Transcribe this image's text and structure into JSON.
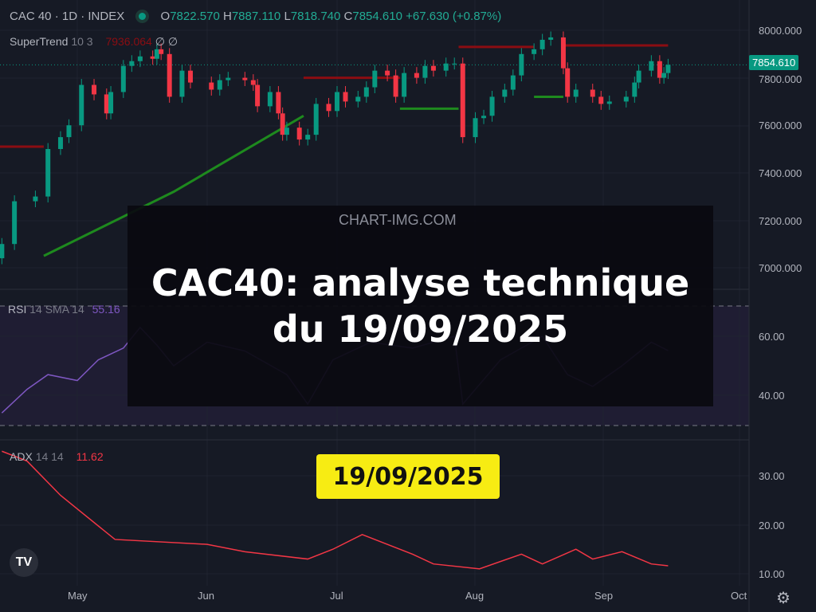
{
  "header": {
    "symbol": "CAC 40 · 1D · INDEX",
    "open_label": "O",
    "open": "7822.570",
    "high_label": "H",
    "high": "7887.110",
    "low_label": "L",
    "low": "7818.740",
    "close_label": "C",
    "close": "7854.610",
    "change": "+67.630 (+0.87%)"
  },
  "supertrend_legend": {
    "name": "SuperTrend",
    "params": "10 3",
    "value": "7936.064",
    "v2": "∅",
    "v3": "∅"
  },
  "rsi_legend": {
    "name": "RSI",
    "params": "14 SMA 14",
    "value": "55.16"
  },
  "adx_legend": {
    "name": "ADX",
    "params": "14 14",
    "value": "11.62"
  },
  "watermark": "CHART-IMG.COM",
  "overlay": {
    "title": "CAC40: analyse technique du 19/09/2025",
    "badge": "19/09/2025"
  },
  "colors": {
    "up": "#089981",
    "down": "#f23645",
    "st_up": "#1e8a1e",
    "st_down": "#8b0d12",
    "rsi": "#7e57c2",
    "adx": "#f23645",
    "badge": "#f7ec13"
  },
  "chart_data": [
    {
      "type": "candlestick",
      "title": "CAC 40 · 1D · INDEX",
      "y_ticks": [
        "8000.000",
        "7800.000",
        "7600.000",
        "7400.000",
        "7200.000",
        "7000.000"
      ],
      "ylim": [
        6900,
        8050
      ],
      "last_price": "7854.610",
      "x_ticks": [
        "May",
        "Jun",
        "Jul",
        "Aug",
        "Sep",
        "Oct"
      ],
      "dates": [
        "04-14",
        "04-17",
        "04-22",
        "04-25",
        "04-28",
        "04-30",
        "05-02",
        "05-05",
        "05-08",
        "05-09",
        "05-12",
        "05-14",
        "05-16",
        "05-19",
        "05-20",
        "05-21",
        "05-23",
        "05-26",
        "05-28",
        "06-02",
        "06-04",
        "06-06",
        "06-10",
        "06-12",
        "06-13",
        "06-16",
        "06-18",
        "06-19",
        "06-20",
        "06-23",
        "06-25",
        "06-27",
        "06-30",
        "07-02",
        "07-04",
        "07-07",
        "07-09",
        "07-11",
        "07-14",
        "07-16",
        "07-18",
        "07-21",
        "07-23",
        "07-25",
        "07-28",
        "07-30",
        "08-01",
        "08-04",
        "08-06",
        "08-08",
        "08-11",
        "08-13",
        "08-15",
        "08-18",
        "08-20",
        "08-22",
        "08-25",
        "08-26",
        "08-28",
        "09-01",
        "09-03",
        "09-05",
        "09-09",
        "09-11",
        "09-12",
        "09-15",
        "09-17",
        "09-18",
        "09-19"
      ],
      "close": [
        7100,
        7280,
        7300,
        7500,
        7550,
        7600,
        7770,
        7730,
        7650,
        7740,
        7850,
        7870,
        7890,
        7880,
        7920,
        7900,
        7720,
        7830,
        7780,
        7750,
        7790,
        7800,
        7790,
        7770,
        7680,
        7740,
        7650,
        7560,
        7590,
        7540,
        7560,
        7690,
        7660,
        7740,
        7700,
        7720,
        7760,
        7830,
        7810,
        7720,
        7820,
        7800,
        7850,
        7830,
        7860,
        7860,
        7550,
        7630,
        7640,
        7720,
        7750,
        7810,
        7900,
        7920,
        7960,
        7970,
        7840,
        7720,
        7750,
        7720,
        7690,
        7700,
        7720,
        7780,
        7830,
        7870,
        7800,
        7820,
        7854.61
      ],
      "supertrend": [
        {
          "from": "04-10",
          "to": "04-24",
          "value": 7510,
          "trend": "down"
        },
        {
          "from": "04-24",
          "to": "06-24",
          "value": [
            7050,
            7320,
            7640
          ],
          "trend": "up"
        },
        {
          "from": "06-24",
          "to": "07-17",
          "value": 7800,
          "trend": "down"
        },
        {
          "from": "07-17",
          "to": "07-31",
          "value": 7670,
          "trend": "up"
        },
        {
          "from": "07-31",
          "to": "08-18",
          "value": 7930,
          "trend": "down"
        },
        {
          "from": "08-18",
          "to": "08-25",
          "value": 7720,
          "trend": "up"
        },
        {
          "from": "08-25",
          "to": "09-19",
          "value": 7936.064,
          "trend": "down"
        }
      ]
    },
    {
      "type": "line",
      "name": "RSI",
      "y_ticks": [
        "60.00",
        "40.00"
      ],
      "bands": [
        70,
        30
      ],
      "dates": [
        "04-14",
        "04-20",
        "04-25",
        "05-01",
        "05-06",
        "05-12",
        "05-16",
        "05-20",
        "05-24",
        "06-01",
        "06-10",
        "06-20",
        "06-25",
        "07-01",
        "07-10",
        "07-20",
        "07-30",
        "08-01",
        "08-10",
        "08-20",
        "08-26",
        "09-01",
        "09-08",
        "09-15",
        "09-19"
      ],
      "values": [
        34,
        42,
        47,
        45,
        52,
        56,
        63,
        57,
        50,
        58,
        55,
        47,
        37,
        52,
        58,
        56,
        60,
        37,
        52,
        60,
        47,
        43,
        50,
        58,
        55.16
      ]
    },
    {
      "type": "line",
      "name": "ADX",
      "y_ticks": [
        "30.00",
        "20.00",
        "10.00"
      ],
      "dates": [
        "04-14",
        "04-20",
        "04-28",
        "05-10",
        "06-01",
        "06-10",
        "06-25",
        "07-01",
        "07-08",
        "07-20",
        "07-25",
        "08-05",
        "08-15",
        "08-20",
        "08-28",
        "09-01",
        "09-08",
        "09-15",
        "09-19"
      ],
      "values": [
        35,
        33,
        26,
        17,
        16,
        14.5,
        13,
        15,
        18,
        14,
        12,
        11,
        14,
        12,
        15,
        13,
        14.5,
        12,
        11.62
      ]
    }
  ]
}
